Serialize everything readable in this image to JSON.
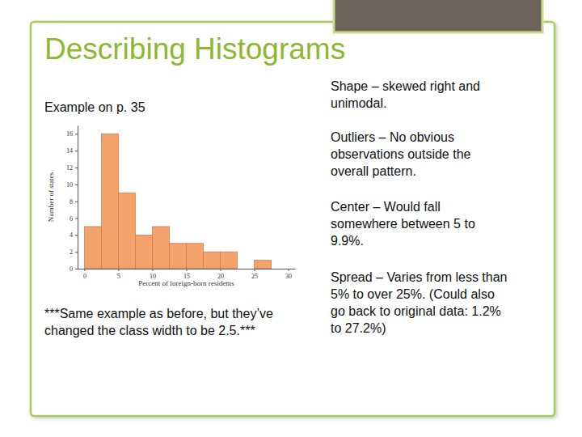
{
  "slide": {
    "title": "Describing Histograms",
    "example": "Example on p. 35",
    "note": "***Same example as before, but they’ve changed the class width to be 2.5.***",
    "points": [
      "Shape – skewed right and unimodal.",
      "Outliers – No obvious observations outside the overall pattern.",
      "Center – Would fall somewhere between 5 to 9.9%.",
      "Spread – Varies from less than 5% to over 25%. (Could also go back to original data:  1.2% to 27.2%)"
    ]
  },
  "chart_data": {
    "type": "histogram",
    "x_label": "Percent of foreign-born residents",
    "y_label": "Number of states",
    "bins": [
      0,
      2.5,
      5,
      7.5,
      10,
      12.5,
      15,
      17.5,
      20,
      22.5,
      25,
      27.5
    ],
    "values": [
      5,
      16,
      9,
      4,
      5,
      3,
      3,
      2,
      2,
      0,
      1
    ],
    "color": "#f4a26c",
    "xlim": [
      -1,
      31
    ],
    "xticks": [
      0,
      5,
      10,
      15,
      20,
      25,
      30
    ],
    "ylim": [
      0,
      17
    ],
    "yticks": [
      0,
      2,
      4,
      6,
      8,
      10,
      12,
      14,
      16
    ],
    "grid": false
  }
}
